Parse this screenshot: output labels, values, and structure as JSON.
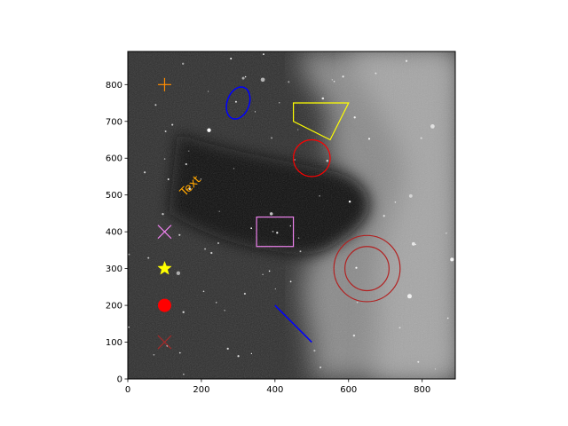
{
  "chart_data": {
    "type": "scatter",
    "title": "",
    "xlabel": "",
    "ylabel": "",
    "xlim": [
      0,
      890
    ],
    "ylim": [
      0,
      890
    ],
    "xticks": [
      0,
      200,
      400,
      600,
      800
    ],
    "yticks": [
      0,
      100,
      200,
      300,
      400,
      500,
      600,
      700,
      800
    ],
    "grid": false,
    "background": "grayscale nebula image (Horsehead Nebula)",
    "markers": [
      {
        "name": "plus",
        "x": 100,
        "y": 800,
        "marker": "+",
        "color": "#ff8c00"
      },
      {
        "name": "x-violet",
        "x": 100,
        "y": 400,
        "marker": "x",
        "color": "#ee82ee"
      },
      {
        "name": "star",
        "x": 100,
        "y": 300,
        "marker": "*",
        "color": "#ffff00"
      },
      {
        "name": "circle",
        "x": 100,
        "y": 200,
        "marker": "o",
        "color": "#ff0000"
      },
      {
        "name": "x-brown",
        "x": 100,
        "y": 100,
        "marker": "x",
        "color": "#a52a2a"
      }
    ],
    "text_annotation": {
      "text": "Text",
      "x": 150,
      "y": 500,
      "rotation": 45,
      "color": "#ffa500"
    },
    "regions": {
      "ellipse": {
        "cx": 300,
        "cy": 750,
        "rx": 30,
        "ry": 45,
        "rotation_deg": 20,
        "color": "#0000ff"
      },
      "polygon": {
        "points": [
          [
            450,
            750
          ],
          [
            600,
            750
          ],
          [
            550,
            650
          ],
          [
            450,
            700
          ]
        ],
        "color": "#ffff00"
      },
      "circle": {
        "cx": 500,
        "cy": 600,
        "r": 50,
        "color": "#ff0000"
      },
      "rectangle": {
        "x": 350,
        "y": 360,
        "width": 100,
        "height": 80,
        "color": "#ee82ee"
      },
      "annulus": {
        "cx": 650,
        "cy": 300,
        "r_inner": 60,
        "r_outer": 90,
        "color": "#b22222"
      },
      "line": {
        "x1": 400,
        "y1": 200,
        "x2": 500,
        "y2": 100,
        "color": "#0000ff"
      }
    }
  }
}
